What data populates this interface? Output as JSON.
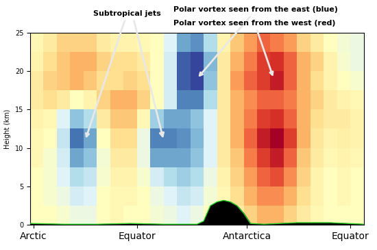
{
  "chart_data": {
    "type": "heatmap",
    "y_label": "Height (km)",
    "xlim": [
      0,
      100
    ],
    "ylim": [
      0,
      25
    ],
    "xticks": [
      {
        "value": 1,
        "label": "Arctic"
      },
      {
        "value": 32,
        "label": "Equator"
      },
      {
        "value": 65,
        "label": "Antarctica"
      },
      {
        "value": 96,
        "label": "Equator"
      }
    ],
    "yticks": [
      0,
      5,
      10,
      15,
      20,
      25
    ],
    "x_edges": [
      0,
      4,
      8,
      12,
      16,
      20,
      24,
      28,
      32,
      36,
      40,
      44,
      48,
      52,
      56,
      60,
      64,
      68,
      72,
      76,
      80,
      84,
      88,
      92,
      96,
      100
    ],
    "y_edges": [
      0,
      2.5,
      5,
      7.5,
      10,
      12.5,
      15,
      17.5,
      20,
      22.5,
      25
    ],
    "color_range": [
      -40,
      40
    ],
    "cells": [
      [
        0,
        0,
        -2,
        -5,
        -5,
        0,
        2,
        0,
        0,
        -3,
        -5,
        -8,
        -5,
        0,
        2,
        5,
        10,
        15,
        15,
        10,
        5,
        2,
        0,
        0,
        0
      ],
      [
        0,
        -2,
        -5,
        -10,
        -8,
        0,
        2,
        2,
        0,
        -5,
        -8,
        -12,
        -10,
        -3,
        2,
        8,
        15,
        20,
        20,
        15,
        8,
        3,
        0,
        2,
        0
      ],
      [
        0,
        -2,
        -8,
        -15,
        -12,
        -2,
        3,
        3,
        -2,
        -10,
        -15,
        -18,
        -15,
        -5,
        3,
        10,
        18,
        25,
        28,
        20,
        10,
        3,
        0,
        2,
        0
      ],
      [
        2,
        -2,
        -10,
        -25,
        -20,
        -3,
        5,
        5,
        -5,
        -25,
        -25,
        -25,
        -20,
        -8,
        5,
        12,
        22,
        30,
        35,
        25,
        12,
        5,
        2,
        3,
        2
      ],
      [
        2,
        0,
        -12,
        -32,
        -25,
        0,
        8,
        8,
        -5,
        -30,
        -30,
        -28,
        -22,
        -8,
        5,
        15,
        25,
        35,
        40,
        30,
        15,
        6,
        3,
        4,
        3
      ],
      [
        3,
        2,
        -8,
        -20,
        -15,
        5,
        12,
        12,
        2,
        -18,
        -25,
        -25,
        -20,
        -8,
        5,
        15,
        22,
        30,
        32,
        25,
        15,
        8,
        5,
        5,
        3
      ],
      [
        5,
        8,
        5,
        0,
        3,
        10,
        15,
        15,
        10,
        0,
        -10,
        -30,
        -30,
        -15,
        5,
        15,
        20,
        25,
        25,
        22,
        15,
        10,
        5,
        3,
        2
      ],
      [
        5,
        10,
        12,
        15,
        12,
        8,
        8,
        10,
        8,
        0,
        -10,
        -35,
        -38,
        -20,
        5,
        18,
        25,
        30,
        35,
        25,
        15,
        8,
        3,
        0,
        -2
      ],
      [
        3,
        8,
        12,
        15,
        15,
        10,
        8,
        8,
        5,
        0,
        -10,
        -35,
        -38,
        -22,
        5,
        15,
        22,
        30,
        32,
        25,
        15,
        10,
        3,
        -2,
        -5
      ],
      [
        2,
        5,
        10,
        10,
        10,
        5,
        3,
        3,
        2,
        0,
        -8,
        -25,
        -28,
        -15,
        3,
        12,
        18,
        25,
        22,
        18,
        10,
        5,
        0,
        -3,
        -5
      ]
    ],
    "surface": {
      "x": [
        0,
        10,
        20,
        30,
        40,
        50,
        52,
        54,
        56,
        58,
        60,
        62,
        64,
        66,
        70,
        80,
        90,
        100
      ],
      "values": [
        0.2,
        0.1,
        0.1,
        0.2,
        0.1,
        0.1,
        0.5,
        2.5,
        3.0,
        3.2,
        3.0,
        2.5,
        1.5,
        0.2,
        0.1,
        0.3,
        0.3,
        0.1
      ],
      "color": "#22cc22"
    },
    "annotations": [
      "Subtropical jets",
      "Polar vortex seen from the east (blue)",
      "Polar vortex seen from the west (red)"
    ]
  }
}
